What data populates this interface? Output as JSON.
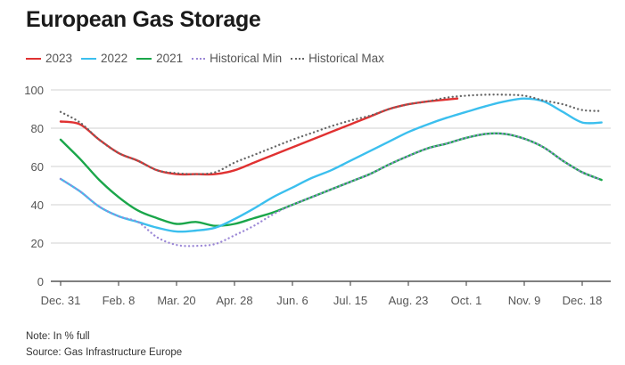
{
  "chart_data": {
    "type": "line",
    "title": "European Gas Storage",
    "xlabel": "",
    "ylabel": "",
    "ylim": [
      0,
      100
    ],
    "yticks": [
      0,
      20,
      40,
      60,
      80,
      100
    ],
    "xlim_days": [
      0,
      364
    ],
    "xticks": [
      {
        "day": 0,
        "label": "Dec. 31"
      },
      {
        "day": 39,
        "label": "Feb. 8"
      },
      {
        "day": 78,
        "label": "Mar. 20"
      },
      {
        "day": 117,
        "label": "Apr. 28"
      },
      {
        "day": 156,
        "label": "Jun. 6"
      },
      {
        "day": 195,
        "label": "Jul. 15"
      },
      {
        "day": 234,
        "label": "Aug. 23"
      },
      {
        "day": 273,
        "label": "Oct. 1"
      },
      {
        "day": 312,
        "label": "Nov. 9"
      },
      {
        "day": 351,
        "label": "Dec. 18"
      }
    ],
    "grid": true,
    "legend_position": "top-left",
    "x": [
      0,
      13,
      26,
      39,
      52,
      65,
      78,
      91,
      104,
      117,
      130,
      143,
      156,
      169,
      182,
      195,
      208,
      221,
      234,
      247,
      260,
      273,
      286,
      299,
      312,
      325,
      338,
      351,
      364
    ],
    "series": [
      {
        "name": "2023",
        "style": "solid",
        "color": "#e03131",
        "values": [
          83.5,
          82,
          74,
          67,
          63,
          58,
          56,
          56,
          56,
          58,
          62,
          66,
          70,
          74,
          78,
          82,
          86,
          90,
          92.5,
          94,
          95,
          null,
          null,
          null,
          null,
          null,
          null,
          null,
          null
        ],
        "end": {
          "day": 267,
          "value": 95.5
        }
      },
      {
        "name": "2022",
        "style": "solid",
        "color": "#3bbfee",
        "values": [
          53.5,
          47,
          39,
          34,
          31,
          28,
          26,
          26.5,
          28,
          32.5,
          38,
          44,
          49,
          54,
          58,
          63,
          68,
          73,
          78,
          82,
          85.5,
          88.5,
          91.5,
          94,
          95.5,
          94,
          88.5,
          83,
          83
        ]
      },
      {
        "name": "2021",
        "style": "solid",
        "color": "#1aa64a",
        "values": [
          74,
          64,
          53,
          44,
          37,
          33,
          30,
          31,
          29,
          30,
          33,
          36,
          40,
          44,
          48,
          52,
          56,
          61,
          65.5,
          69.5,
          72,
          75,
          77,
          77,
          74.5,
          70,
          63,
          57,
          53
        ]
      },
      {
        "name": "Historical Min",
        "style": "dotted",
        "color": "#9b87d6",
        "values": [
          53.5,
          47,
          39,
          34,
          31,
          23,
          19,
          18.5,
          19.5,
          24,
          29,
          35,
          40,
          44,
          48,
          52,
          56,
          61,
          65.5,
          69.5,
          72,
          75,
          77,
          77,
          74.5,
          70,
          63,
          57,
          53
        ]
      },
      {
        "name": "Historical Max",
        "style": "dotted",
        "color": "#666666",
        "values": [
          88.5,
          83,
          74,
          67,
          63,
          58,
          56.5,
          56,
          57,
          62,
          66,
          70,
          74,
          77.5,
          81,
          84,
          86.5,
          90,
          92.5,
          94,
          96,
          97,
          97.5,
          97.5,
          97,
          94.5,
          92.5,
          89.5,
          89
        ]
      }
    ]
  },
  "notes": {
    "note": "Note: In % full",
    "source": "Source: Gas Infrastructure Europe"
  }
}
